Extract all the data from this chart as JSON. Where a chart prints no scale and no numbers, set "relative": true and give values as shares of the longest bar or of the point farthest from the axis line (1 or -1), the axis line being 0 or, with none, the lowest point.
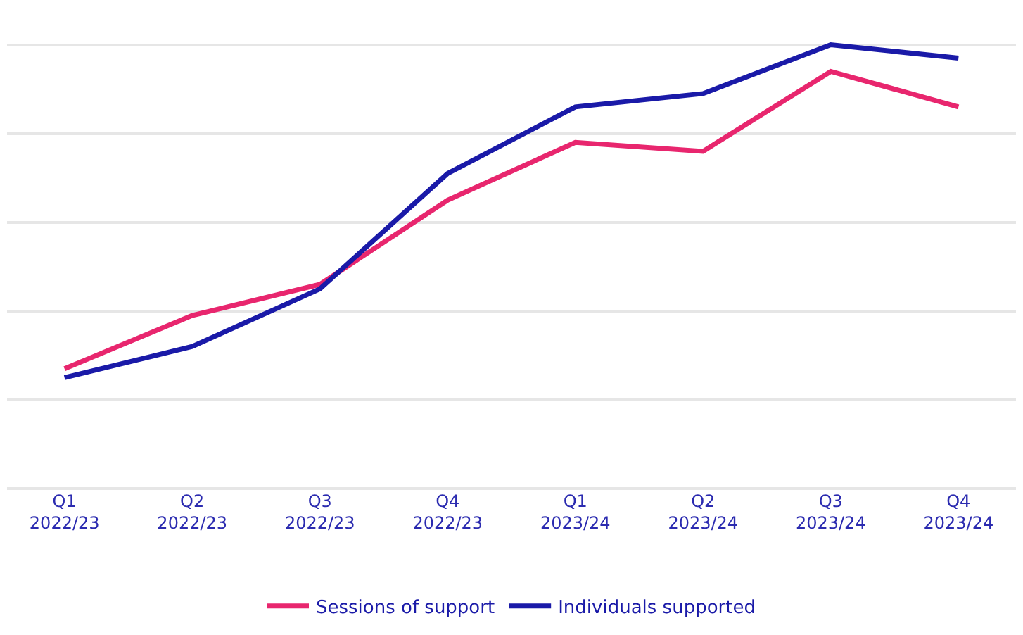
{
  "chart_data": {
    "type": "line",
    "relative": true,
    "grid": "y",
    "legend": "bottom",
    "marker": "none",
    "line_style": "solid",
    "categories": [
      "Q1 2022/23",
      "Q2 2022/23",
      "Q3 2022/23",
      "Q4 2022/23",
      "Q1 2023/24",
      "Q2 2023/24",
      "Q3 2023/24",
      "Q4 2023/24"
    ],
    "series": [
      {
        "name": "Sessions of support",
        "color": "#e8266e",
        "values": [
          0.27,
          0.39,
          0.46,
          0.65,
          0.78,
          0.76,
          0.94,
          0.86
        ]
      },
      {
        "name": "Individuals supported",
        "color": "#1a1aa8",
        "values": [
          0.25,
          0.32,
          0.45,
          0.71,
          0.86,
          0.89,
          1.0,
          0.97
        ]
      }
    ]
  }
}
